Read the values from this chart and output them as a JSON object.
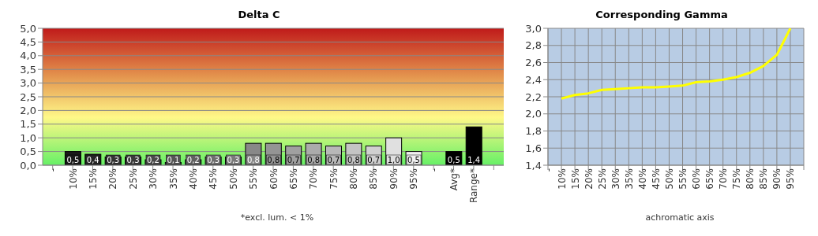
{
  "chart_data": [
    {
      "type": "bar",
      "title": "Delta C",
      "categories": [
        "-",
        "10%",
        "15%",
        "20%",
        "25%",
        "30%",
        "35%",
        "40%",
        "45%",
        "50%",
        "55%",
        "60%",
        "65%",
        "70%",
        "75%",
        "80%",
        "85%",
        "90%",
        "95%",
        "-",
        "Avg*",
        "Range*",
        null
      ],
      "values": [
        null,
        0.5,
        0.4,
        0.3,
        0.3,
        0.2,
        0.1,
        0.2,
        0.3,
        0.3,
        0.8,
        0.8,
        0.7,
        0.8,
        0.7,
        0.8,
        0.7,
        1.0,
        0.5,
        null,
        0.5,
        1.4,
        null
      ],
      "colors": [
        null,
        "#1a1a1a",
        "#262626",
        "#333333",
        "#3a3a3a",
        "#4a4a4a",
        "#555555",
        "#606060",
        "#6e6e6e",
        "#7a7a7a",
        "#888888",
        "#949494",
        "#a0a0a0",
        "#ababab",
        "#b8b8b8",
        "#c4c4c4",
        "#d0d0d0",
        "#e0e0e0",
        "#f0f0f0",
        null,
        "#000000",
        "#000000",
        null
      ],
      "value_labels": [
        null,
        "0,5",
        "0,4",
        "0,3",
        "0,3",
        "0,2",
        "0,1",
        "0,2",
        "0,3",
        "0,3",
        "0,8",
        "0,8",
        "0,7",
        "0,8",
        "0,7",
        "0,8",
        "0,7",
        "1,0",
        "0,5",
        null,
        "0,5",
        "1,4",
        null
      ],
      "ylim": [
        0,
        5
      ],
      "yticks": [
        {
          "value": 0,
          "label": "0,0"
        },
        {
          "value": 0.5,
          "label": "0,5"
        },
        {
          "value": 1,
          "label": "1,0"
        },
        {
          "value": 1.5,
          "label": "1,5"
        },
        {
          "value": 2,
          "label": "2,0"
        },
        {
          "value": 2.5,
          "label": "2,5"
        },
        {
          "value": 3,
          "label": "3,0"
        },
        {
          "value": 3.5,
          "label": "3,5"
        },
        {
          "value": 4,
          "label": "4,0"
        },
        {
          "value": 4.5,
          "label": "4,5"
        },
        {
          "value": 5,
          "label": "5,0"
        }
      ],
      "grid": "y",
      "annotations": [
        "*excl. lum. < 1%"
      ]
    },
    {
      "type": "line",
      "title": "Corresponding Gamma",
      "xlabel": "achromatic axis",
      "categories": [
        "-",
        "10%",
        "15%",
        "20%",
        "25%",
        "30%",
        "35%",
        "40%",
        "45%",
        "50%",
        "55%",
        "60%",
        "65%",
        "70%",
        "75%",
        "80%",
        "85%",
        "90%",
        "95%",
        null
      ],
      "series": [
        {
          "color": "#ffff00",
          "values": [
            null,
            2.18,
            2.22,
            2.24,
            2.28,
            2.29,
            2.3,
            2.31,
            2.31,
            2.32,
            2.33,
            2.37,
            2.38,
            2.4,
            2.43,
            2.48,
            2.56,
            2.69,
            3.0,
            null
          ]
        }
      ],
      "ylim": [
        1.4,
        3.0
      ],
      "yticks": [
        {
          "value": 1.4,
          "label": "1,4"
        },
        {
          "value": 1.6,
          "label": "1,6"
        },
        {
          "value": 1.8,
          "label": "1,8"
        },
        {
          "value": 2.0,
          "label": "2,0"
        },
        {
          "value": 2.2,
          "label": "2,2"
        },
        {
          "value": 2.4,
          "label": "2,4"
        },
        {
          "value": 2.6,
          "label": "2,6"
        },
        {
          "value": 2.8,
          "label": "2,8"
        },
        {
          "value": 3.0,
          "label": "3,0"
        }
      ],
      "grid": true,
      "marker": "none",
      "line_style": "solid"
    }
  ]
}
